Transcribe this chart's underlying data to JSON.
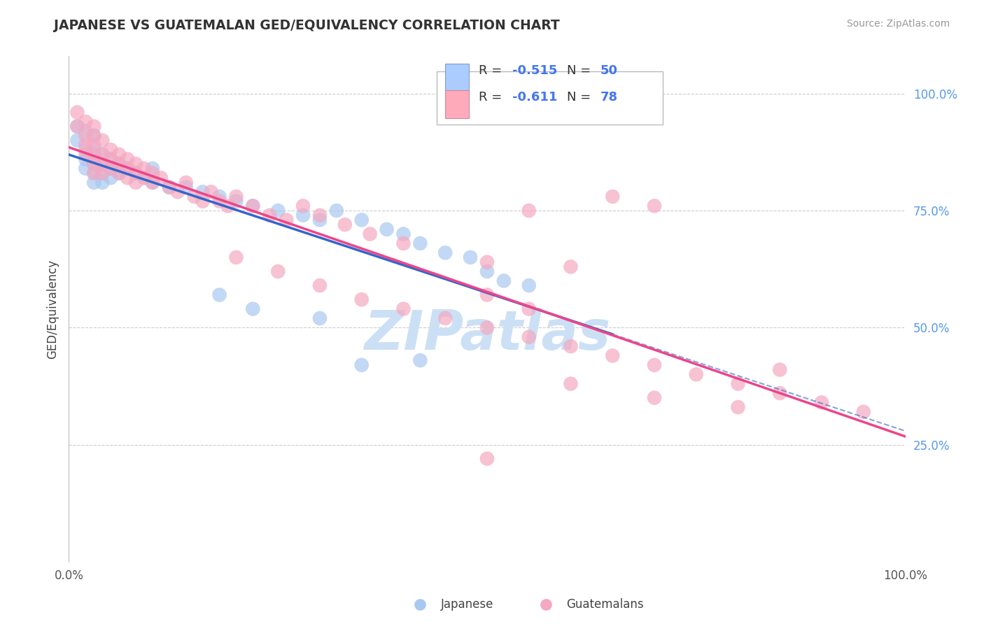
{
  "title": "JAPANESE VS GUATEMALAN GED/EQUIVALENCY CORRELATION CHART",
  "source": "Source: ZipAtlas.com",
  "ylabel": "GED/Equivalency",
  "xlim": [
    0.0,
    1.0
  ],
  "ylim": [
    0.0,
    1.08
  ],
  "yticks": [
    0.25,
    0.5,
    0.75,
    1.0
  ],
  "ytick_labels": [
    "25.0%",
    "50.0%",
    "75.0%",
    "100.0%"
  ],
  "japanese_R": "-0.515",
  "japanese_N": "50",
  "guatemalan_R": "-0.611",
  "guatemalan_N": "78",
  "japanese_color": "#a8c8f0",
  "guatemalan_color": "#f5a8c0",
  "japanese_line_color": "#3366cc",
  "guatemalan_line_color": "#ee4488",
  "background_color": "#ffffff",
  "grid_color": "#cccccc",
  "watermark_color": "#cce0f5",
  "legend_box_japanese": "#aaccff",
  "legend_box_guatemalan": "#ffaabb",
  "japanese_scatter": [
    [
      0.01,
      0.93
    ],
    [
      0.01,
      0.9
    ],
    [
      0.02,
      0.92
    ],
    [
      0.02,
      0.88
    ],
    [
      0.02,
      0.86
    ],
    [
      0.02,
      0.84
    ],
    [
      0.03,
      0.91
    ],
    [
      0.03,
      0.88
    ],
    [
      0.03,
      0.86
    ],
    [
      0.03,
      0.85
    ],
    [
      0.03,
      0.83
    ],
    [
      0.03,
      0.81
    ],
    [
      0.04,
      0.87
    ],
    [
      0.04,
      0.85
    ],
    [
      0.04,
      0.83
    ],
    [
      0.04,
      0.81
    ],
    [
      0.05,
      0.86
    ],
    [
      0.05,
      0.84
    ],
    [
      0.05,
      0.82
    ],
    [
      0.06,
      0.85
    ],
    [
      0.06,
      0.83
    ],
    [
      0.07,
      0.84
    ],
    [
      0.08,
      0.83
    ],
    [
      0.09,
      0.82
    ],
    [
      0.1,
      0.84
    ],
    [
      0.1,
      0.81
    ],
    [
      0.12,
      0.8
    ],
    [
      0.14,
      0.8
    ],
    [
      0.16,
      0.79
    ],
    [
      0.18,
      0.78
    ],
    [
      0.2,
      0.77
    ],
    [
      0.22,
      0.76
    ],
    [
      0.25,
      0.75
    ],
    [
      0.28,
      0.74
    ],
    [
      0.3,
      0.73
    ],
    [
      0.32,
      0.75
    ],
    [
      0.35,
      0.73
    ],
    [
      0.38,
      0.71
    ],
    [
      0.4,
      0.7
    ],
    [
      0.42,
      0.68
    ],
    [
      0.45,
      0.66
    ],
    [
      0.48,
      0.65
    ],
    [
      0.5,
      0.62
    ],
    [
      0.52,
      0.6
    ],
    [
      0.55,
      0.59
    ],
    [
      0.18,
      0.57
    ],
    [
      0.22,
      0.54
    ],
    [
      0.3,
      0.52
    ],
    [
      0.35,
      0.42
    ],
    [
      0.42,
      0.43
    ]
  ],
  "guatemalan_scatter": [
    [
      0.01,
      0.96
    ],
    [
      0.01,
      0.93
    ],
    [
      0.02,
      0.94
    ],
    [
      0.02,
      0.91
    ],
    [
      0.02,
      0.89
    ],
    [
      0.02,
      0.87
    ],
    [
      0.03,
      0.93
    ],
    [
      0.03,
      0.91
    ],
    [
      0.03,
      0.89
    ],
    [
      0.03,
      0.87
    ],
    [
      0.03,
      0.85
    ],
    [
      0.03,
      0.83
    ],
    [
      0.04,
      0.9
    ],
    [
      0.04,
      0.87
    ],
    [
      0.04,
      0.85
    ],
    [
      0.04,
      0.83
    ],
    [
      0.05,
      0.88
    ],
    [
      0.05,
      0.86
    ],
    [
      0.05,
      0.84
    ],
    [
      0.06,
      0.87
    ],
    [
      0.06,
      0.85
    ],
    [
      0.06,
      0.83
    ],
    [
      0.07,
      0.86
    ],
    [
      0.07,
      0.84
    ],
    [
      0.07,
      0.82
    ],
    [
      0.08,
      0.85
    ],
    [
      0.08,
      0.83
    ],
    [
      0.08,
      0.81
    ],
    [
      0.09,
      0.84
    ],
    [
      0.09,
      0.82
    ],
    [
      0.1,
      0.83
    ],
    [
      0.1,
      0.81
    ],
    [
      0.11,
      0.82
    ],
    [
      0.12,
      0.8
    ],
    [
      0.13,
      0.79
    ],
    [
      0.14,
      0.81
    ],
    [
      0.15,
      0.78
    ],
    [
      0.16,
      0.77
    ],
    [
      0.17,
      0.79
    ],
    [
      0.18,
      0.77
    ],
    [
      0.19,
      0.76
    ],
    [
      0.2,
      0.78
    ],
    [
      0.22,
      0.76
    ],
    [
      0.24,
      0.74
    ],
    [
      0.26,
      0.73
    ],
    [
      0.28,
      0.76
    ],
    [
      0.3,
      0.74
    ],
    [
      0.33,
      0.72
    ],
    [
      0.36,
      0.7
    ],
    [
      0.4,
      0.68
    ],
    [
      0.5,
      0.64
    ],
    [
      0.6,
      0.63
    ],
    [
      0.65,
      0.78
    ],
    [
      0.7,
      0.76
    ],
    [
      0.55,
      0.75
    ],
    [
      0.2,
      0.65
    ],
    [
      0.25,
      0.62
    ],
    [
      0.3,
      0.59
    ],
    [
      0.35,
      0.56
    ],
    [
      0.4,
      0.54
    ],
    [
      0.45,
      0.52
    ],
    [
      0.5,
      0.5
    ],
    [
      0.55,
      0.48
    ],
    [
      0.6,
      0.46
    ],
    [
      0.65,
      0.44
    ],
    [
      0.7,
      0.42
    ],
    [
      0.75,
      0.4
    ],
    [
      0.8,
      0.38
    ],
    [
      0.85,
      0.36
    ],
    [
      0.9,
      0.34
    ],
    [
      0.95,
      0.32
    ],
    [
      0.5,
      0.22
    ],
    [
      0.6,
      0.38
    ],
    [
      0.7,
      0.35
    ],
    [
      0.8,
      0.33
    ],
    [
      0.85,
      0.41
    ],
    [
      0.5,
      0.57
    ],
    [
      0.55,
      0.54
    ]
  ]
}
